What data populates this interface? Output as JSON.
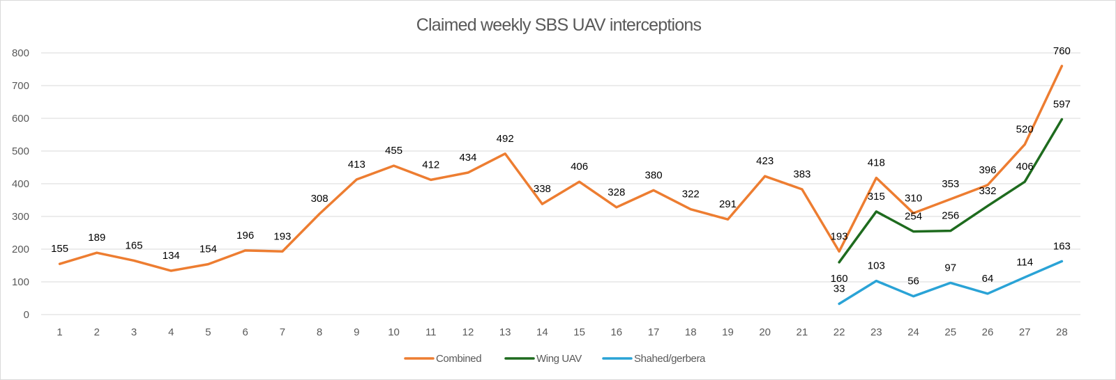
{
  "chart_data": {
    "type": "line",
    "title": "Claimed weekly SBS UAV interceptions",
    "xlabel": "",
    "ylabel": "",
    "x": [
      1,
      2,
      3,
      4,
      5,
      6,
      7,
      8,
      9,
      10,
      11,
      12,
      13,
      14,
      15,
      16,
      17,
      18,
      19,
      20,
      21,
      22,
      23,
      24,
      25,
      26,
      27,
      28
    ],
    "ylim": [
      0,
      800
    ],
    "yticks": [
      0,
      100,
      200,
      300,
      400,
      500,
      600,
      700,
      800
    ],
    "grid": true,
    "legend_position": "bottom",
    "series": [
      {
        "name": "Combined",
        "color": "#ED7D31",
        "values": [
          155,
          189,
          165,
          134,
          154,
          196,
          193,
          308,
          413,
          455,
          412,
          434,
          492,
          338,
          406,
          328,
          380,
          322,
          291,
          423,
          383,
          193,
          418,
          310,
          353,
          396,
          520,
          760
        ]
      },
      {
        "name": "Wing UAV",
        "color": "#1E6B1E",
        "values": [
          null,
          null,
          null,
          null,
          null,
          null,
          null,
          null,
          null,
          null,
          null,
          null,
          null,
          null,
          null,
          null,
          null,
          null,
          null,
          null,
          null,
          160,
          315,
          254,
          256,
          332,
          406,
          597
        ]
      },
      {
        "name": "Shahed/gerbera",
        "color": "#2AA3D6",
        "values": [
          null,
          null,
          null,
          null,
          null,
          null,
          null,
          null,
          null,
          null,
          null,
          null,
          null,
          null,
          null,
          null,
          null,
          null,
          null,
          null,
          null,
          33,
          103,
          56,
          97,
          64,
          114,
          163
        ]
      }
    ]
  }
}
